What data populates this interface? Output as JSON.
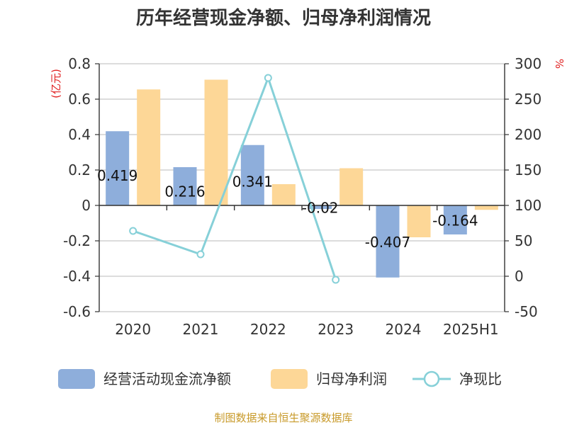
{
  "chart_data": {
    "type": "bar",
    "title": "历年经营现金净额、归母净利润情况",
    "categories": [
      "2020",
      "2021",
      "2022",
      "2023",
      "2024",
      "2025H1"
    ],
    "series": [
      {
        "name": "经营活动现金流净额",
        "type": "bar",
        "axis": "left",
        "color": "#8eaedb",
        "values": [
          0.419,
          0.216,
          0.341,
          -0.02,
          -0.407,
          -0.164
        ],
        "labels": [
          "0.419",
          "0.216",
          "0.341",
          "-0.02",
          "-0.407",
          "-0.164"
        ]
      },
      {
        "name": "归母净利润",
        "type": "bar",
        "axis": "left",
        "color": "#fdd797",
        "values": [
          0.655,
          0.71,
          0.12,
          0.21,
          -0.18,
          -0.025
        ]
      },
      {
        "name": "净现比",
        "type": "line",
        "axis": "right",
        "color": "#86d0d8",
        "values": [
          64,
          31,
          280,
          -5,
          null,
          null
        ]
      }
    ],
    "y_left": {
      "unit_label": "(亿元)",
      "min": -0.6,
      "max": 0.8,
      "step": 0.2,
      "ticks": [
        "0.8",
        "0.6",
        "0.4",
        "0.2",
        "0",
        "-0.2",
        "-0.4",
        "-0.6"
      ]
    },
    "y_right": {
      "unit_label": "%",
      "min": -50,
      "max": 300,
      "step": 50,
      "ticks": [
        "300",
        "250",
        "200",
        "150",
        "100",
        "50",
        "0",
        "-50"
      ]
    },
    "grid": true,
    "legend_position": "bottom",
    "source": "制图数据来自恒生聚源数据库"
  }
}
